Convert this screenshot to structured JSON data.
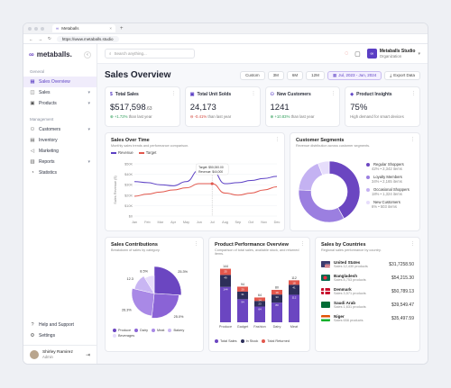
{
  "browser": {
    "tab_title": "Metaballs",
    "url": "https://www.metaballs.studio"
  },
  "brand": {
    "name": "metaballs.",
    "accent": "#5b3fc4"
  },
  "sidebar": {
    "general_label": "General",
    "general_items": [
      {
        "label": "Sales Overview",
        "icon": "chart-icon",
        "active": true
      },
      {
        "label": "Sales",
        "icon": "bag-icon",
        "caret": true
      },
      {
        "label": "Products",
        "icon": "box-icon",
        "caret": true
      }
    ],
    "management_label": "Management",
    "management_items": [
      {
        "label": "Customers",
        "icon": "users-icon",
        "caret": true
      },
      {
        "label": "Inventory",
        "icon": "inventory-icon"
      },
      {
        "label": "Marketing",
        "icon": "megaphone-icon"
      },
      {
        "label": "Reports",
        "icon": "report-icon",
        "caret": true
      },
      {
        "label": "Statistics",
        "icon": "stats-icon"
      }
    ],
    "bottom_items": [
      {
        "label": "Help and Support",
        "icon": "help-icon"
      },
      {
        "label": "Settings",
        "icon": "gear-icon"
      }
    ],
    "user": {
      "name": "Shirley Ramirez",
      "role": "Admin"
    }
  },
  "topbar": {
    "search_placeholder": "Search anything...",
    "org_name": "Metaballs Studio",
    "org_sub": "Organization"
  },
  "header": {
    "title": "Sales Overview",
    "filters": [
      "Custom",
      "3M",
      "6M",
      "12M"
    ],
    "date_range": "Jul, 2023 - Jun, 2024",
    "export_label": "Export Data"
  },
  "kpis": [
    {
      "label": "Total Sales",
      "value": "$517,598",
      "cents": ".63",
      "delta": "+1.72%",
      "delta_dir": "up",
      "delta_text": "than last year"
    },
    {
      "label": "Total Unit Solds",
      "value": "24,173",
      "cents": "",
      "delta": "-0.41%",
      "delta_dir": "down",
      "delta_text": "than last year"
    },
    {
      "label": "New Customers",
      "value": "1241",
      "cents": "",
      "delta": "+10.83%",
      "delta_dir": "up",
      "delta_text": "than last year"
    },
    {
      "label": "Product Insights",
      "value": "75%",
      "cents": "",
      "delta": "",
      "delta_dir": "",
      "delta_text": "High demand for smart devices"
    }
  ],
  "sales_over_time": {
    "title": "Sales Over Time",
    "subtitle": "Monthly sales trends and performance comparison.",
    "tooltip": [
      "Target: $50,000.00",
      "Revenue: $44,000"
    ],
    "chart_data": {
      "type": "line",
      "categories": [
        "Jan",
        "Feb",
        "Mar",
        "Apr",
        "May",
        "Jun",
        "Jul",
        "Aug",
        "Sep",
        "Oct",
        "Nov",
        "Dec"
      ],
      "series": [
        {
          "name": "Revenue",
          "color": "#5b3fc4",
          "values": [
            33,
            32,
            30,
            29,
            33,
            44,
            44,
            31,
            32,
            34,
            36,
            38
          ]
        },
        {
          "name": "Target",
          "color": "#e2574c",
          "values": [
            19,
            21,
            23,
            25,
            27,
            31,
            31,
            22,
            20,
            22,
            25,
            28
          ]
        }
      ],
      "ylabel": "Sales Revenue ($)",
      "yticks": [
        "$0",
        "$10K",
        "$20K",
        "$30K",
        "$40K",
        "$50K"
      ],
      "ylim": [
        0,
        50
      ],
      "legend_position": "top-left"
    }
  },
  "customer_segments": {
    "title": "Customer Segments",
    "subtitle": "Revenue distribution across customer segments.",
    "chart_data": {
      "type": "pie",
      "labels": [
        "Regular Shoppers",
        "Loyalty Members",
        "Occasional Shoppers",
        "New Customers"
      ],
      "values": [
        42,
        34,
        18,
        6
      ],
      "details": [
        "42% • 2,342 items",
        "34% • 2,165 items",
        "18% • 1,324 items",
        "6% • 503 items"
      ],
      "colors": [
        "#6b46c1",
        "#9b7fe0",
        "#c4b2f2",
        "#e6ddfb"
      ]
    }
  },
  "sales_contributions": {
    "title": "Sales Contributions",
    "subtitle": "Breakdown of sales by category.",
    "chart_data": {
      "type": "pie",
      "labels": [
        "Produce",
        "Dairy",
        "Meat",
        "Bakery",
        "Beverages"
      ],
      "values": [
        25.3,
        25.0,
        26.3,
        12.3,
        8.5
      ],
      "value_labels": [
        "25.3%",
        "25.0%",
        "26.3%",
        "12.3",
        "8.5%"
      ],
      "colors": [
        "#6b46c1",
        "#8a63d6",
        "#a989e6",
        "#c9b6f3",
        "#e7ddfb"
      ]
    }
  },
  "product_performance": {
    "title": "Product Performance Overview",
    "subtitle": "Comparison of total sales, available stock, and returned items.",
    "chart_data": {
      "type": "bar",
      "categories": [
        "Produce",
        "Gadget",
        "Fashion",
        "Dairy",
        "Meat"
      ],
      "series": [
        {
          "name": "Total Sales",
          "color": "#6b46c1",
          "values": [
            144,
            94,
            64,
            80,
            112
          ]
        },
        {
          "name": "In Stock",
          "color": "#2d2f5a",
          "values": [
            49,
            31,
            23,
            33,
            41
          ]
        },
        {
          "name": "Total Returned",
          "color": "#e2574c",
          "values": [
            25,
            20,
            14,
            19,
            18
          ]
        }
      ],
      "data_labels": [
        "144",
        "94",
        "64",
        "80",
        "112"
      ]
    }
  },
  "sales_by_countries": {
    "title": "Sales by Countries",
    "subtitle": "Regional sales performance by country.",
    "countries": [
      {
        "name": "United States",
        "sub": "Sales 12,430 products",
        "value": "$31,7258.50",
        "flag": "us"
      },
      {
        "name": "Bangladesh",
        "sub": "Sales 8,753 products",
        "value": "$54,215.30",
        "flag": "bd"
      },
      {
        "name": "Denmark",
        "sub": "Sales 3,571 products",
        "value": "$50,789.13",
        "flag": "dk"
      },
      {
        "name": "Saudi Arab",
        "sub": "Sales 1,631 products",
        "value": "$39,549.47",
        "flag": "sa"
      },
      {
        "name": "Niger",
        "sub": "Sales 658 products",
        "value": "$35,497.59",
        "flag": "ne"
      }
    ]
  }
}
